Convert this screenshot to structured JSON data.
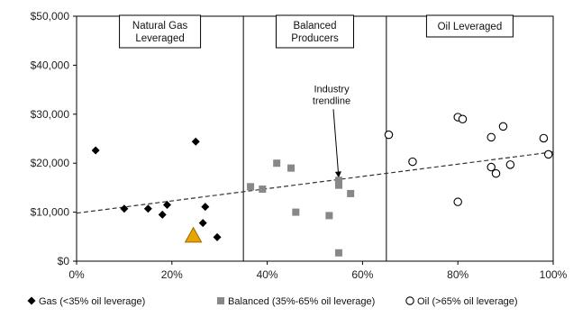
{
  "chart_data": {
    "type": "scatter",
    "xlim": [
      0,
      100
    ],
    "ylim": [
      0,
      50000
    ],
    "x_ticks": [
      "0%",
      "20%",
      "40%",
      "60%",
      "80%",
      "100%"
    ],
    "x_tick_values": [
      0,
      20,
      40,
      60,
      80,
      100
    ],
    "y_ticks": [
      "$0",
      "$10,000",
      "$20,000",
      "$30,000",
      "$40,000",
      "$50,000"
    ],
    "y_tick_values": [
      0,
      10000,
      20000,
      30000,
      40000,
      50000
    ],
    "grid": false,
    "legend_position": "bottom",
    "dividers_x": [
      35,
      65
    ],
    "regions": [
      {
        "label_lines": [
          "Natural Gas",
          "Leveraged"
        ],
        "x_center": 17.5
      },
      {
        "label_lines": [
          "Balanced",
          "Producers"
        ],
        "x_center": 50
      },
      {
        "label_lines": [
          "Oil Leveraged"
        ],
        "x_center": 82.5
      }
    ],
    "trendline": {
      "x": [
        0,
        100
      ],
      "y": [
        9800,
        22300
      ],
      "style": "dashed"
    },
    "annotation": {
      "lines": [
        "Industry",
        "trendline"
      ],
      "x": 53.5,
      "y": 34500,
      "arrow_to": {
        "x": 55,
        "y": 17000
      }
    },
    "series": [
      {
        "name": "Gas (<35% oil leverage)",
        "marker": "diamond",
        "color": "#000000",
        "points": [
          {
            "x": 4,
            "y": 22600
          },
          {
            "x": 10,
            "y": 10700
          },
          {
            "x": 15,
            "y": 10700
          },
          {
            "x": 18,
            "y": 9500
          },
          {
            "x": 19,
            "y": 11500
          },
          {
            "x": 25,
            "y": 24400
          },
          {
            "x": 26.5,
            "y": 7800
          },
          {
            "x": 27,
            "y": 11100
          },
          {
            "x": 29.5,
            "y": 4900
          }
        ]
      },
      {
        "name": "Balanced (35%-65% oil leverage)",
        "marker": "square",
        "color": "#888888",
        "points": [
          {
            "x": 36.5,
            "y": 15200
          },
          {
            "x": 39,
            "y": 14700
          },
          {
            "x": 42,
            "y": 20000
          },
          {
            "x": 45,
            "y": 19000
          },
          {
            "x": 46,
            "y": 10000
          },
          {
            "x": 53,
            "y": 9300
          },
          {
            "x": 55,
            "y": 15500
          },
          {
            "x": 55,
            "y": 16500
          },
          {
            "x": 57.5,
            "y": 13800
          },
          {
            "x": 55,
            "y": 1700
          }
        ]
      },
      {
        "name": "Oil (>65% oil leverage)",
        "marker": "open-circle",
        "color": "#000000",
        "points": [
          {
            "x": 65.5,
            "y": 25800
          },
          {
            "x": 70.5,
            "y": 20300
          },
          {
            "x": 80,
            "y": 29400
          },
          {
            "x": 81,
            "y": 29000
          },
          {
            "x": 80,
            "y": 12100
          },
          {
            "x": 87,
            "y": 25300
          },
          {
            "x": 87,
            "y": 19200
          },
          {
            "x": 88,
            "y": 17900
          },
          {
            "x": 89.5,
            "y": 27500
          },
          {
            "x": 91,
            "y": 19700
          },
          {
            "x": 98,
            "y": 25100
          },
          {
            "x": 99,
            "y": 21800
          }
        ]
      },
      {
        "marker": "triangle",
        "color": "#E8A400",
        "stroke": "#9A6A00",
        "points": [
          {
            "x": 24.5,
            "y": 5200
          }
        ]
      }
    ]
  }
}
